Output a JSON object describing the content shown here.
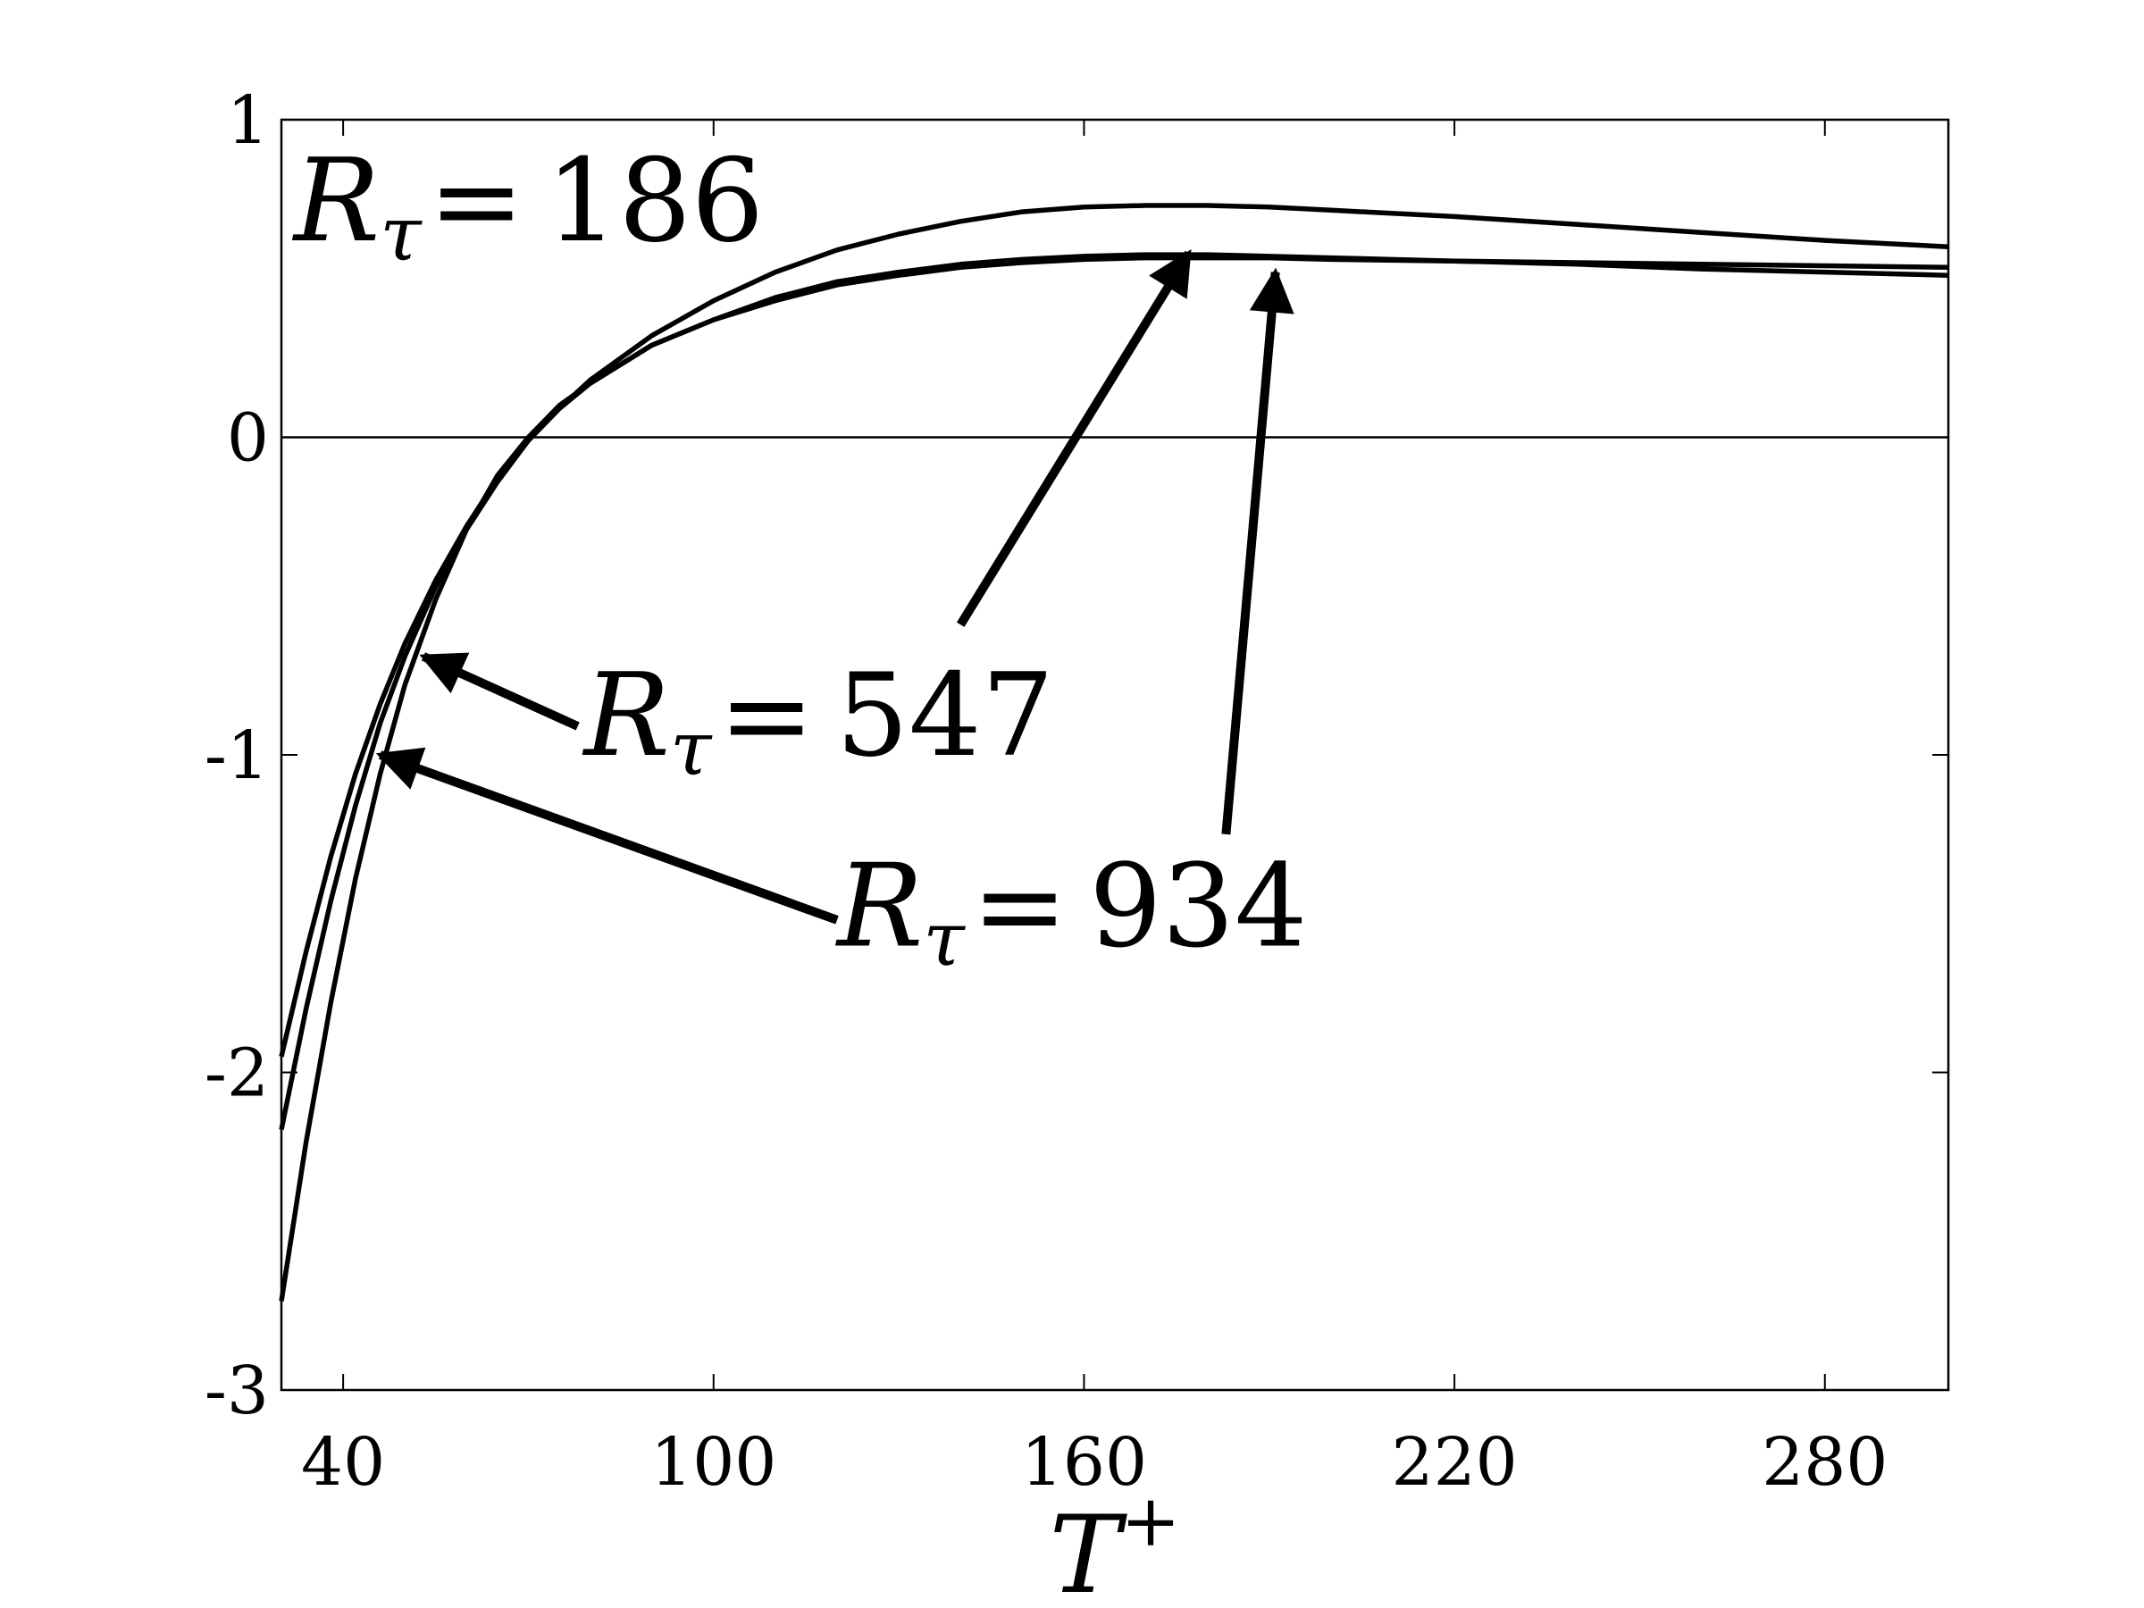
{
  "chart_data": {
    "type": "line",
    "title": "",
    "xlabel": "T",
    "xlabel_sup": "+",
    "ylabel": "",
    "xlim": [
      30,
      300
    ],
    "ylim": [
      -3,
      1
    ],
    "xticks": [
      40,
      100,
      160,
      220,
      280
    ],
    "yticks": [
      1,
      0,
      -1,
      -2,
      -3
    ],
    "xtick_labels": [
      "40",
      "100",
      "160",
      "220",
      "280"
    ],
    "ytick_labels": [
      "1",
      "0",
      "-1",
      "-2",
      "-3"
    ],
    "grid": false,
    "zero_line": true,
    "line_color": "#000000",
    "series": [
      {
        "x": [
          30,
          34,
          38,
          42,
          46,
          50,
          55,
          60,
          65,
          70,
          75,
          80,
          90,
          100,
          110,
          120,
          130,
          140,
          150,
          160,
          170,
          180,
          190,
          200,
          220,
          240,
          260,
          280,
          300
        ],
        "y": [
          -1.95,
          -1.62,
          -1.32,
          -1.06,
          -0.84,
          -0.65,
          -0.45,
          -0.28,
          -0.13,
          -0.01,
          0.09,
          0.18,
          0.32,
          0.43,
          0.52,
          0.59,
          0.64,
          0.68,
          0.71,
          0.725,
          0.73,
          0.73,
          0.725,
          0.715,
          0.695,
          0.67,
          0.645,
          0.62,
          0.6
        ]
      },
      {
        "x": [
          30,
          34,
          38,
          42,
          46,
          50,
          55,
          60,
          65,
          70,
          75,
          80,
          90,
          100,
          110,
          120,
          130,
          140,
          150,
          160,
          170,
          180,
          190,
          200,
          220,
          240,
          260,
          280,
          300
        ],
        "y": [
          -2.18,
          -1.8,
          -1.46,
          -1.16,
          -0.9,
          -0.69,
          -0.47,
          -0.29,
          -0.14,
          -0.01,
          0.09,
          0.17,
          0.29,
          0.37,
          0.43,
          0.48,
          0.51,
          0.535,
          0.55,
          0.56,
          0.565,
          0.565,
          0.565,
          0.56,
          0.555,
          0.55,
          0.545,
          0.54,
          0.535
        ]
      },
      {
        "x": [
          30,
          34,
          38,
          42,
          46,
          50,
          55,
          60,
          65,
          70,
          75,
          80,
          90,
          100,
          110,
          120,
          130,
          140,
          150,
          160,
          170,
          180,
          190,
          200,
          220,
          240,
          260,
          280,
          300
        ],
        "y": [
          -2.72,
          -2.22,
          -1.78,
          -1.39,
          -1.06,
          -0.78,
          -0.51,
          -0.29,
          -0.12,
          0.0,
          0.1,
          0.17,
          0.29,
          0.37,
          0.44,
          0.49,
          0.52,
          0.545,
          0.56,
          0.57,
          0.575,
          0.575,
          0.57,
          0.565,
          0.555,
          0.545,
          0.53,
          0.52,
          0.51
        ]
      }
    ],
    "annotations": [
      {
        "sym": "R",
        "sub": "τ",
        "eq": "=",
        "val": "186",
        "tx": 32,
        "ty": 0.62
      },
      {
        "sym": "R",
        "sub": "τ",
        "eq": "=",
        "val": "547",
        "tx": 79,
        "ty": -1.0,
        "arrows": [
          {
            "from": [
              78,
              -0.91
            ],
            "to": [
              53,
              -0.69
            ]
          },
          {
            "from": [
              140,
              -0.59
            ],
            "to": [
              177,
              0.58
            ]
          }
        ]
      },
      {
        "sym": "R",
        "sub": "τ",
        "eq": "=",
        "val": "934",
        "tx": 120,
        "ty": -1.6,
        "arrows": [
          {
            "from": [
              120,
              -1.52
            ],
            "to": [
              46,
              -1.0
            ]
          },
          {
            "from": [
              183,
              -1.25
            ],
            "to": [
              191,
              0.52
            ]
          }
        ]
      }
    ]
  }
}
